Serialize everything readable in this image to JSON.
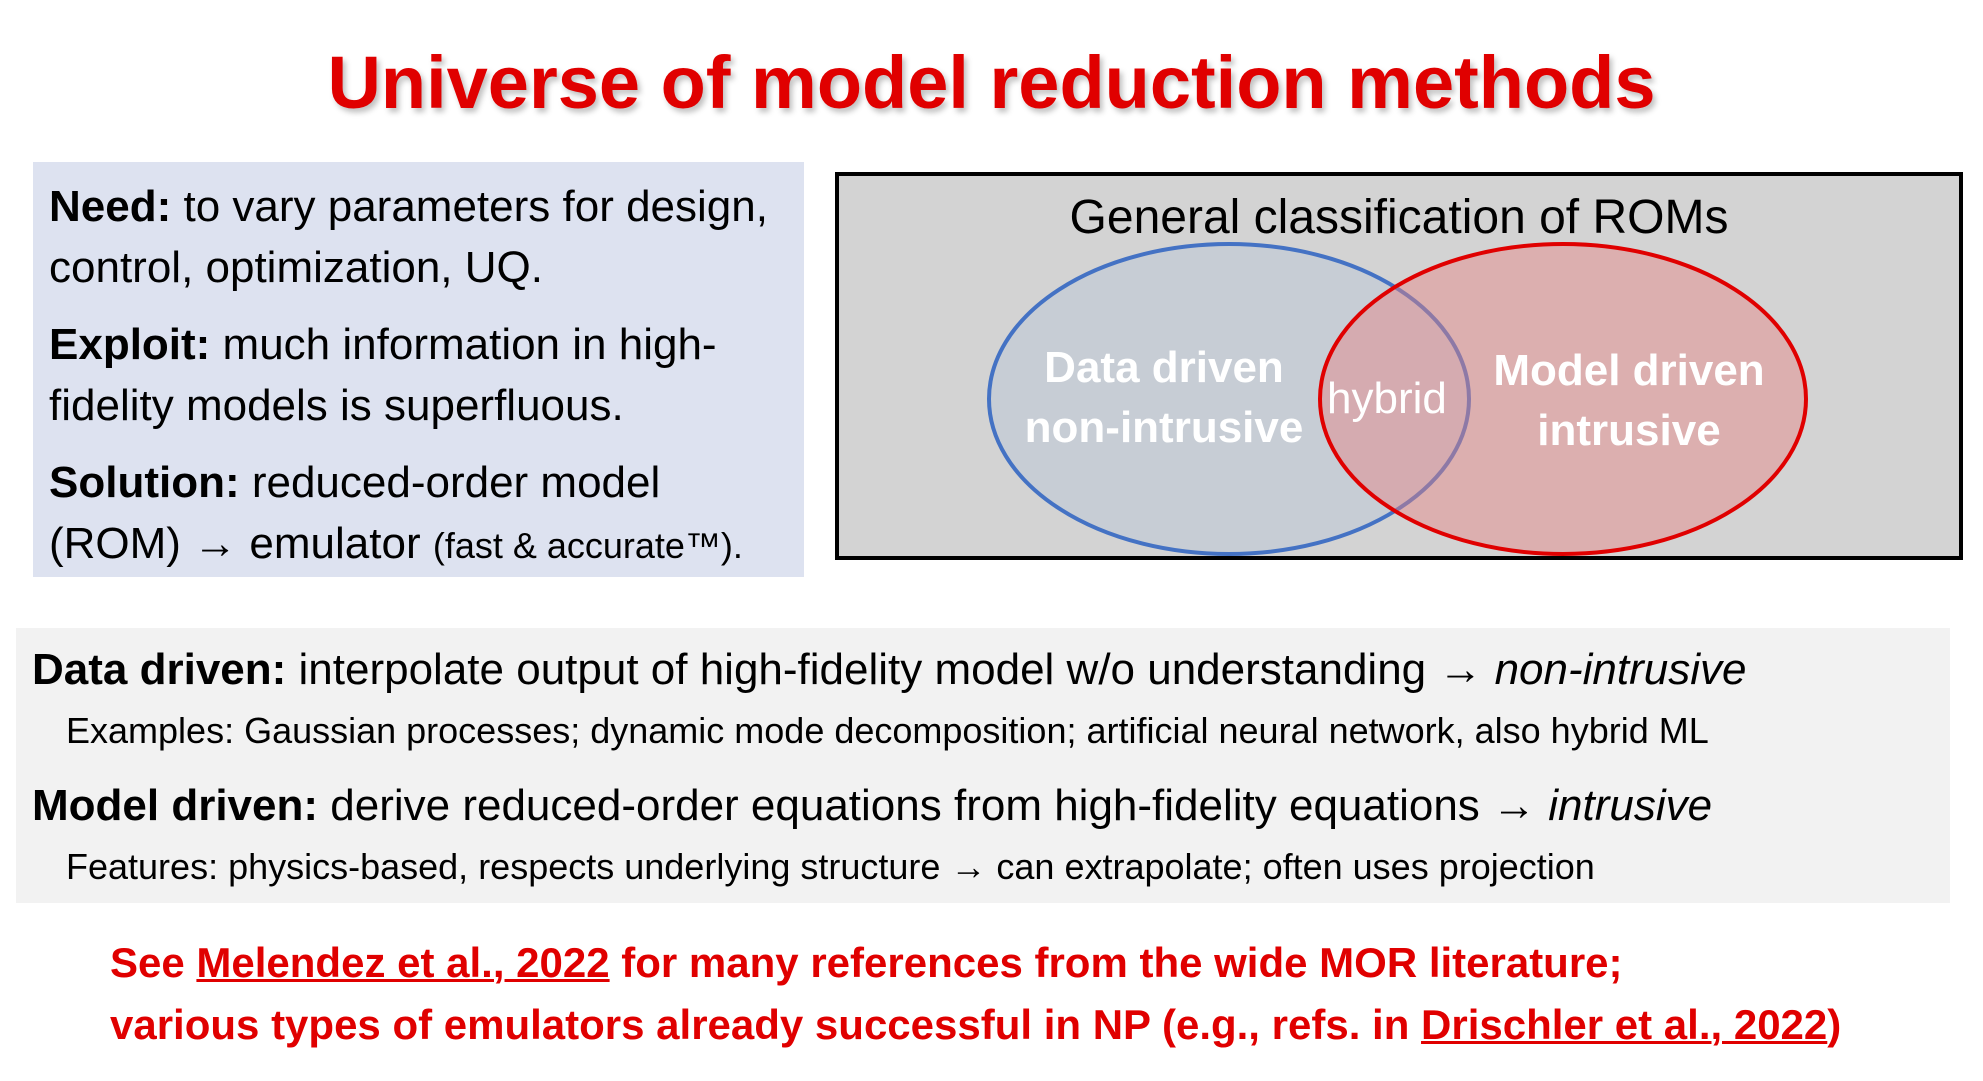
{
  "title": "Universe of model reduction methods",
  "need_box": {
    "need_label": "Need:",
    "need_text": " to vary parameters for design, control, optimization, UQ.",
    "exploit_label": "Exploit:",
    "exploit_text": " much information in high-fidelity models is superfluous.",
    "solution_label": "Solution:",
    "solution_text": " reduced-order model (ROM) → emulator ",
    "solution_small": "(fast & accurate™).",
    "bg_color": "#dde2f0"
  },
  "rom_box": {
    "title": "General classification of ROMs",
    "data_driven_line1": "Data driven",
    "data_driven_line2": "non-intrusive",
    "hybrid": "hybrid",
    "model_driven_line1": "Model driven",
    "model_driven_line2": "intrusive",
    "data_driven_color": "#4472c4",
    "model_driven_color": "#e00000"
  },
  "classes": {
    "data_label": "Data driven:",
    "data_text": " interpolate output of high-fidelity model w/o understanding → ",
    "data_italic": "non-intrusive",
    "data_examples": "Examples: Gaussian processes; dynamic mode decomposition; artificial neural network, also hybrid ML",
    "model_label": "Model driven:",
    "model_text": " derive reduced-order equations from high-fidelity equations → ",
    "model_italic": "intrusive",
    "model_features": "Features: physics-based, respects underlying structure → can extrapolate; often uses projection"
  },
  "refs": {
    "line1_pre": "See ",
    "line1_link": "Melendez et al., 2022",
    "line1_post": " for many references from the wide MOR literature;",
    "line2_pre": "various types of emulators already successful in NP (e.g., refs. in ",
    "line2_link": "Drischler et al., 2022",
    "line2_post": ")",
    "color": "#e00000"
  }
}
